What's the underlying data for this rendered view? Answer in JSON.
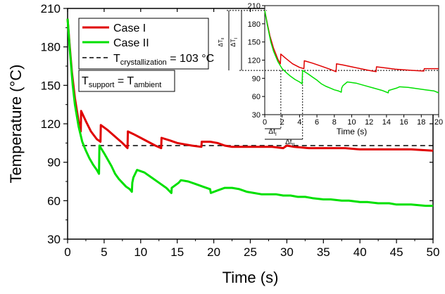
{
  "chart_data": [
    {
      "type": "line",
      "role": "main",
      "xlabel": "Time (s)",
      "ylabel": "Temperature (°C)",
      "xlim": [
        0,
        50
      ],
      "ylim": [
        30,
        210
      ],
      "xticks": [
        "0",
        "5",
        "10",
        "15",
        "20",
        "25",
        "30",
        "35",
        "40",
        "45",
        "50"
      ],
      "yticks": [
        "30",
        "60",
        "90",
        "120",
        "150",
        "180",
        "210"
      ],
      "reference_line": {
        "y": 103,
        "style": "dashed",
        "color": "#000000"
      },
      "legend": {
        "position": "top-left",
        "entries": [
          {
            "label": "Case I",
            "color": "#e00000"
          },
          {
            "label": "Case II",
            "color": "#00e000"
          },
          {
            "label_main": "T",
            "label_sub": "crystallization",
            "label_tail": " = 103 °C",
            "color": "#000000",
            "style": "dashed"
          }
        ]
      },
      "annotation": {
        "main1": "T",
        "sub1": "support",
        "eq": " = T",
        "sub2": "ambient"
      },
      "series": [
        {
          "name": "Case I",
          "color": "#e00000",
          "x": [
            0,
            0.3,
            0.6,
            1.0,
            1.5,
            1.8,
            1.85,
            2.5,
            3.2,
            4.0,
            4.5,
            4.55,
            5.5,
            6.5,
            7.5,
            8.2,
            8.25,
            9.0,
            10.0,
            11.0,
            12.0,
            12.8,
            12.85,
            14.0,
            15.0,
            16.0,
            17.0,
            18.3,
            18.35,
            19.5,
            20.5,
            21.5,
            22.5,
            25,
            28,
            29.5,
            30,
            31,
            33,
            35,
            38,
            40,
            42.5,
            45,
            47,
            50
          ],
          "y": [
            202,
            180,
            160,
            140,
            122,
            114,
            130,
            122,
            114,
            108,
            106,
            119,
            115,
            110,
            105,
            101,
            114,
            112,
            109,
            106,
            103,
            101,
            109,
            107,
            105,
            104,
            103,
            102,
            106,
            106,
            105,
            103,
            102,
            102,
            102,
            101,
            103,
            102,
            101,
            101,
            101,
            100,
            100,
            100,
            100,
            99
          ]
        },
        {
          "name": "Case II",
          "color": "#00e000",
          "x": [
            0,
            0.3,
            0.7,
            1.0,
            1.5,
            2.0,
            2.5,
            3.0,
            3.5,
            4.0,
            4.3,
            4.35,
            5.0,
            5.5,
            6.0,
            6.5,
            7.0,
            7.5,
            8.0,
            8.5,
            8.8,
            8.85,
            9.0,
            9.5,
            10.5,
            11.5,
            12.5,
            13.5,
            14.2,
            14.25,
            15.2,
            15.5,
            16.5,
            17.5,
            18.5,
            19.5,
            19.6,
            20.5,
            21.5,
            22.5,
            23.5,
            24.5,
            25.5,
            26.5,
            27.5,
            28.5,
            29.5,
            30.5,
            31.5,
            32.5,
            33.5,
            35,
            36,
            37.5,
            38.5,
            40,
            41,
            42.5,
            44,
            45,
            47,
            49,
            50
          ],
          "y": [
            202,
            178,
            150,
            135,
            118,
            106,
            99,
            93,
            88,
            84,
            81,
            103,
            97,
            92,
            87,
            81,
            77,
            74,
            71,
            69,
            67,
            74,
            78,
            84,
            82,
            78,
            74,
            70,
            66,
            70,
            74,
            76,
            75,
            73,
            71,
            69,
            66,
            68,
            70,
            70,
            69,
            67,
            66,
            65,
            65,
            65,
            64,
            64,
            63,
            63,
            62,
            61,
            61,
            60,
            60,
            59,
            59,
            58,
            58,
            57,
            57,
            56,
            56
          ]
        }
      ]
    },
    {
      "type": "line",
      "role": "inset",
      "xlabel": "Time (s)",
      "xlim": [
        0,
        20
      ],
      "ylim": [
        30,
        210
      ],
      "xticks": [
        "0",
        "2",
        "4",
        "6",
        "8",
        "10",
        "12",
        "14",
        "16",
        "18",
        "20"
      ],
      "yticks": [
        "30",
        "60",
        "90",
        "120",
        "150",
        "180",
        "210"
      ],
      "reference_line": {
        "y": 103,
        "style": "dotted"
      },
      "annotations": {
        "dTi_main": "ΔT",
        "dTi_sub": "I",
        "dTii_main": "ΔT",
        "dTii_sub": "II",
        "dti_main": "Δt",
        "dti_sub": "I",
        "dtii_main": "Δt",
        "dtii_sub": "II"
      },
      "series": [
        {
          "name": "Case I",
          "color": "#e00000",
          "x": [
            0,
            0.3,
            0.6,
            1.0,
            1.5,
            1.8,
            1.85,
            2.5,
            3.2,
            4.0,
            4.5,
            4.55,
            5.5,
            6.5,
            7.5,
            8.2,
            8.25,
            9.0,
            10.0,
            11.0,
            12.0,
            12.8,
            12.85,
            14.0,
            15.0,
            16.0,
            17.0,
            18.3,
            18.35,
            19.5,
            20.0
          ],
          "y": [
            202,
            180,
            160,
            140,
            122,
            114,
            130,
            122,
            114,
            108,
            106,
            119,
            115,
            110,
            105,
            101,
            114,
            112,
            109,
            106,
            103,
            101,
            109,
            107,
            105,
            104,
            103,
            102,
            106,
            106,
            106
          ]
        },
        {
          "name": "Case II",
          "color": "#00e000",
          "x": [
            0,
            0.3,
            0.7,
            1.0,
            1.5,
            2.0,
            2.5,
            3.0,
            3.5,
            4.0,
            4.3,
            4.35,
            5.0,
            5.5,
            6.0,
            6.5,
            7.0,
            7.5,
            8.0,
            8.5,
            8.8,
            8.85,
            9.0,
            9.5,
            10.5,
            11.5,
            12.5,
            13.5,
            14.2,
            14.25,
            15.2,
            15.5,
            16.5,
            17.5,
            18.5,
            19.5,
            20.0
          ],
          "y": [
            202,
            178,
            150,
            135,
            118,
            106,
            99,
            93,
            88,
            84,
            81,
            103,
            97,
            92,
            87,
            81,
            77,
            74,
            71,
            69,
            67,
            74,
            78,
            84,
            82,
            78,
            74,
            70,
            66,
            70,
            74,
            76,
            75,
            73,
            71,
            69,
            66
          ]
        }
      ]
    }
  ]
}
